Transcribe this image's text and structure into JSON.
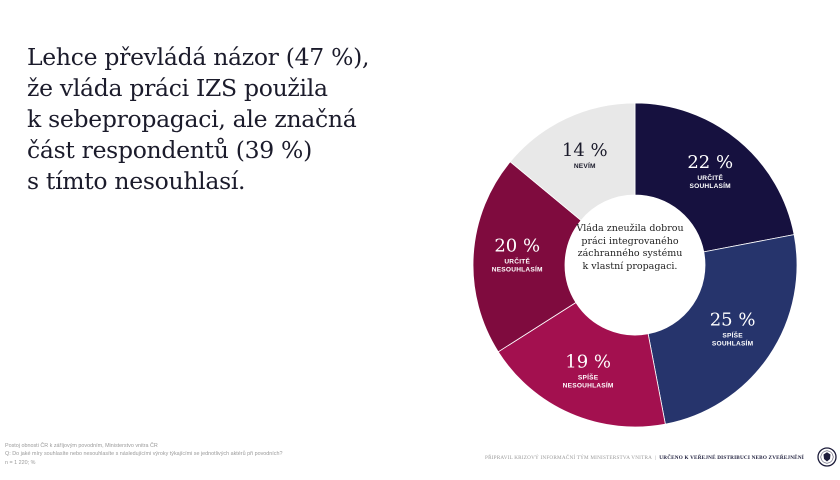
{
  "headline": "Lehce převládá názor (47 %),\nže vláda práci IZS použila\nk sebepropagaci, ale značná\nčást respondentů (39 %)\ns tímto nesouhlasí.",
  "chart_data": {
    "type": "pie",
    "title": "",
    "center_label": "Vláda zneužila dobrou\npráci integrovaného\nzáchranného systému\nk vlastní propagaci.",
    "slices": [
      {
        "category": "URČITĚ SOUHLASÍM",
        "value": 22,
        "display": "22 %",
        "color": "#16113f",
        "text_color": "#ffffff"
      },
      {
        "category": "SPÍŠE SOUHLASÍM",
        "value": 25,
        "display": "25 %",
        "color": "#26346c",
        "text_color": "#ffffff"
      },
      {
        "category": "SPÍŠE NESOUHLASÍM",
        "value": 19,
        "display": "19 %",
        "color": "#a3104f",
        "text_color": "#ffffff"
      },
      {
        "category": "URČITĚ NESOUHLASÍM",
        "value": 20,
        "display": "20 %",
        "color": "#7f0b3e",
        "text_color": "#ffffff"
      },
      {
        "category": "NEVÍM",
        "value": 14,
        "display": "14 %",
        "color": "#e8e8e8",
        "text_color": "#1b1b2b"
      }
    ]
  },
  "source": {
    "line1": "Postoj obnosti ČR k záříjovým povodním, Ministerstvo vnitra ČR",
    "line2": "Q:   Do jaké míry souhlasíte nebo nesouhlasíte s následujícími výroky týkajícími se jednotlivých aktérů při povodních?",
    "line3": "n = 1 220; %"
  },
  "footer": {
    "left": "PŘIPRAVIL KRIZOVÝ INFORMAČNÍ TÝM MINISTERSTVA VNITRA",
    "sep": "|",
    "right": "URČENO K VEŘEJNÉ DISTRIBUCI NEBO ZVEŘEJNĚNÍ"
  },
  "colors": {
    "headline": "#1b1b2b",
    "muted": "#9a9a9a",
    "navy": "#1d1d3b"
  }
}
